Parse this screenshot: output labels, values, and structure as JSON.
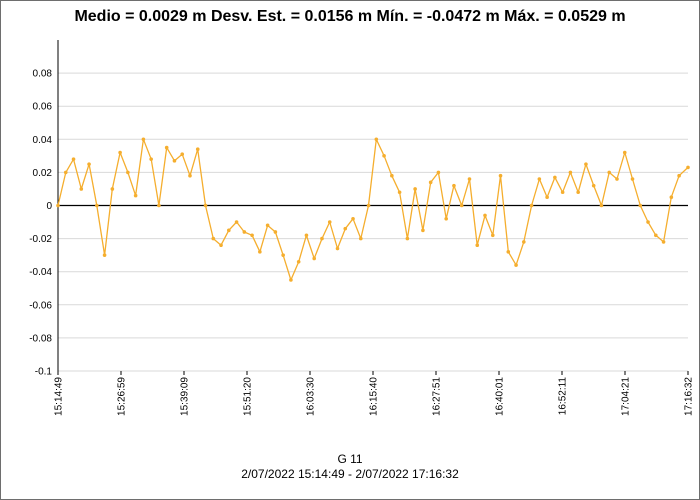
{
  "chart_data": {
    "type": "line",
    "title": "Medio = 0.0029 m  Desv. Est. = 0.0156 m  Mín. = -0.0472 m  Máx. = 0.0529 m",
    "series_name": "G 11",
    "date_range": "2/07/2022 15:14:49 - 2/07/2022 17:16:32",
    "xlabel": "",
    "ylabel": "",
    "ylim": [
      -0.1,
      0.1
    ],
    "y_ticks": [
      -0.1,
      -0.08,
      -0.06,
      -0.04,
      -0.02,
      0,
      0.02,
      0.04,
      0.06,
      0.08
    ],
    "y_tick_labels": [
      "-0.1",
      "-0.08",
      "-0.06",
      "-0.04",
      "-0.02",
      "0",
      "0.02",
      "0.04",
      "0.06",
      "0.08"
    ],
    "x_tick_labels": [
      "15:14:49",
      "15:26:59",
      "15:39:09",
      "15:51:20",
      "16:03:30",
      "16:15:40",
      "16:27:51",
      "16:40:01",
      "16:52:11",
      "17:04:21",
      "17:16:32"
    ],
    "x_minutes_range": [
      0,
      121.72
    ],
    "series": [
      {
        "name": "G 11",
        "color": "#f5ae2e",
        "points": [
          [
            0.0,
            0.0
          ],
          [
            1.5,
            0.02
          ],
          [
            3.0,
            0.028
          ],
          [
            4.5,
            0.01
          ],
          [
            6.0,
            0.025
          ],
          [
            7.5,
            0.0
          ],
          [
            9.0,
            -0.03
          ],
          [
            10.5,
            0.01
          ],
          [
            12.0,
            0.032
          ],
          [
            13.5,
            0.02
          ],
          [
            15.0,
            0.006
          ],
          [
            16.5,
            0.04
          ],
          [
            18.0,
            0.028
          ],
          [
            19.5,
            0.0
          ],
          [
            21.0,
            0.035
          ],
          [
            22.5,
            0.027
          ],
          [
            24.0,
            0.031
          ],
          [
            25.5,
            0.018
          ],
          [
            27.0,
            0.034
          ],
          [
            28.5,
            0.0
          ],
          [
            30.0,
            -0.02
          ],
          [
            31.5,
            -0.024
          ],
          [
            33.0,
            -0.015
          ],
          [
            34.5,
            -0.01
          ],
          [
            36.0,
            -0.016
          ],
          [
            37.5,
            -0.018
          ],
          [
            39.0,
            -0.028
          ],
          [
            40.5,
            -0.012
          ],
          [
            42.0,
            -0.016
          ],
          [
            43.5,
            -0.03
          ],
          [
            45.0,
            -0.045
          ],
          [
            46.5,
            -0.034
          ],
          [
            48.0,
            -0.018
          ],
          [
            49.5,
            -0.032
          ],
          [
            51.0,
            -0.02
          ],
          [
            52.5,
            -0.01
          ],
          [
            54.0,
            -0.026
          ],
          [
            55.5,
            -0.014
          ],
          [
            57.0,
            -0.008
          ],
          [
            58.5,
            -0.02
          ],
          [
            60.0,
            0.0
          ],
          [
            61.5,
            0.04
          ],
          [
            63.0,
            0.03
          ],
          [
            64.5,
            0.018
          ],
          [
            66.0,
            0.008
          ],
          [
            67.5,
            -0.02
          ],
          [
            69.0,
            0.01
          ],
          [
            70.5,
            -0.015
          ],
          [
            72.0,
            0.014
          ],
          [
            73.5,
            0.02
          ],
          [
            75.0,
            -0.008
          ],
          [
            76.5,
            0.012
          ],
          [
            78.0,
            0.0
          ],
          [
            79.5,
            0.016
          ],
          [
            81.0,
            -0.024
          ],
          [
            82.5,
            -0.006
          ],
          [
            84.0,
            -0.018
          ],
          [
            85.5,
            0.018
          ],
          [
            87.0,
            -0.028
          ],
          [
            88.5,
            -0.036
          ],
          [
            90.0,
            -0.022
          ],
          [
            91.5,
            0.0
          ],
          [
            93.0,
            0.016
          ],
          [
            94.5,
            0.005
          ],
          [
            96.0,
            0.017
          ],
          [
            97.5,
            0.008
          ],
          [
            99.0,
            0.02
          ],
          [
            100.5,
            0.008
          ],
          [
            102.0,
            0.025
          ],
          [
            103.5,
            0.012
          ],
          [
            105.0,
            0.0
          ],
          [
            106.5,
            0.02
          ],
          [
            108.0,
            0.016
          ],
          [
            109.5,
            0.032
          ],
          [
            111.0,
            0.016
          ],
          [
            112.5,
            0.0
          ],
          [
            114.0,
            -0.01
          ],
          [
            115.5,
            -0.018
          ],
          [
            117.0,
            -0.022
          ],
          [
            118.5,
            0.005
          ],
          [
            120.0,
            0.018
          ],
          [
            121.72,
            0.023
          ]
        ]
      }
    ]
  }
}
